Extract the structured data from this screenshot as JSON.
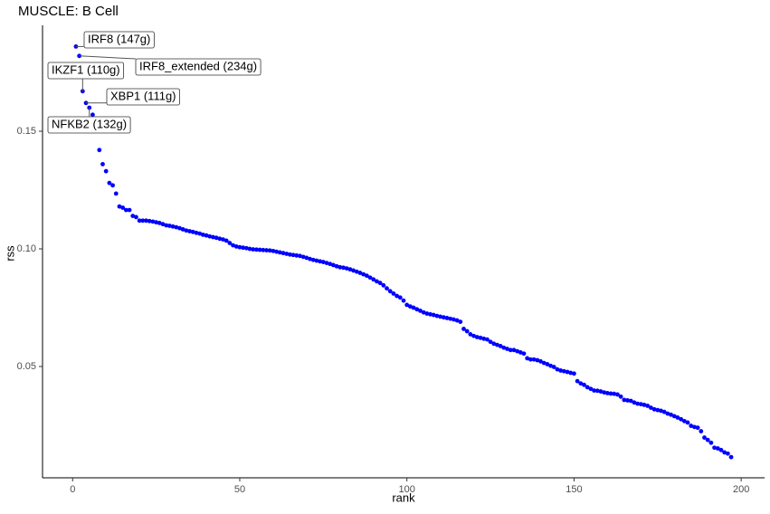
{
  "chart_data": {
    "type": "scatter",
    "title": "MUSCLE: B Cell",
    "x_label": "rank",
    "y_label": "rss",
    "color": "#0000ff",
    "xlim": [
      -9,
      207
    ],
    "ylim": [
      0.0027,
      0.195
    ],
    "xticks": [
      0,
      50,
      100,
      150,
      200
    ],
    "yticks": [
      0.05,
      {
        "value": 0.1,
        "label": "0.10"
      },
      0.15
    ],
    "annotations": [
      "IRF8 (147g)",
      "IRF8_extended (234g)",
      "IKZF1 (110g)",
      "XBP1 (111g)",
      "NFKB2 (132g)"
    ],
    "x": [
      1,
      2,
      3,
      4,
      5,
      6,
      7,
      8,
      9,
      10,
      11,
      12,
      13,
      14,
      15,
      16,
      17,
      18,
      19,
      20,
      21,
      22,
      23,
      24,
      25,
      26,
      27,
      28,
      29,
      30,
      31,
      32,
      33,
      34,
      35,
      36,
      37,
      38,
      39,
      40,
      41,
      42,
      43,
      44,
      45,
      46,
      47,
      48,
      49,
      50,
      51,
      52,
      53,
      54,
      55,
      56,
      57,
      58,
      59,
      60,
      61,
      62,
      63,
      64,
      65,
      66,
      67,
      68,
      69,
      70,
      71,
      72,
      73,
      74,
      75,
      76,
      77,
      78,
      79,
      80,
      81,
      82,
      83,
      84,
      85,
      86,
      87,
      88,
      89,
      90,
      91,
      92,
      93,
      94,
      95,
      96,
      97,
      98,
      99,
      100,
      101,
      102,
      103,
      104,
      105,
      106,
      107,
      108,
      109,
      110,
      111,
      112,
      113,
      114,
      115,
      116,
      117,
      118,
      119,
      120,
      121,
      122,
      123,
      124,
      125,
      126,
      127,
      128,
      129,
      130,
      131,
      132,
      133,
      134,
      135,
      136,
      137,
      138,
      139,
      140,
      141,
      142,
      143,
      144,
      145,
      146,
      147,
      148,
      149,
      150,
      151,
      152,
      153,
      154,
      155,
      156,
      157,
      158,
      159,
      160,
      161,
      162,
      163,
      164,
      165,
      166,
      167,
      168,
      169,
      170,
      171,
      172,
      173,
      174,
      175,
      176,
      177,
      178,
      179,
      180,
      181,
      182,
      183,
      184,
      185,
      186,
      187,
      188,
      189,
      190,
      191,
      192,
      193,
      194,
      195,
      196,
      197
    ],
    "values": [
      0.186,
      0.182,
      0.167,
      0.162,
      0.16,
      0.157,
      0.151,
      0.142,
      0.136,
      0.133,
      0.128,
      0.127,
      0.1235,
      0.118,
      0.1175,
      0.1165,
      0.1165,
      0.114,
      0.1135,
      0.112,
      0.112,
      0.112,
      0.1118,
      0.1116,
      0.1113,
      0.111,
      0.1105,
      0.11,
      0.1098,
      0.1095,
      0.1092,
      0.1088,
      0.1083,
      0.1078,
      0.1075,
      0.1072,
      0.1068,
      0.1065,
      0.106,
      0.1057,
      0.1053,
      0.105,
      0.1047,
      0.1043,
      0.104,
      0.1035,
      0.1025,
      0.1015,
      0.101,
      0.1007,
      0.1005,
      0.1003,
      0.1,
      0.0998,
      0.0997,
      0.0996,
      0.0995,
      0.0994,
      0.0993,
      0.0991,
      0.0988,
      0.0985,
      0.0982,
      0.0979,
      0.0976,
      0.0974,
      0.0972,
      0.097,
      0.0966,
      0.0962,
      0.0957,
      0.0953,
      0.095,
      0.0947,
      0.0944,
      0.094,
      0.0936,
      0.0931,
      0.0926,
      0.0922,
      0.092,
      0.0917,
      0.0913,
      0.0908,
      0.0903,
      0.0898,
      0.0892,
      0.0886,
      0.0878,
      0.087,
      0.0862,
      0.0855,
      0.0845,
      0.0832,
      0.082,
      0.081,
      0.08,
      0.0793,
      0.078,
      0.0762,
      0.0755,
      0.075,
      0.0743,
      0.0737,
      0.073,
      0.0725,
      0.0722,
      0.0719,
      0.0715,
      0.0712,
      0.0709,
      0.0706,
      0.0703,
      0.07,
      0.0696,
      0.069,
      0.066,
      0.065,
      0.0637,
      0.063,
      0.0625,
      0.0622,
      0.0618,
      0.0615,
      0.0605,
      0.0597,
      0.0592,
      0.0587,
      0.058,
      0.0575,
      0.057,
      0.057,
      0.0565,
      0.056,
      0.0555,
      0.0535,
      0.053,
      0.053,
      0.0527,
      0.0522,
      0.0515,
      0.051,
      0.0503,
      0.0498,
      0.0488,
      0.0483,
      0.048,
      0.0477,
      0.0473,
      0.047,
      0.0438,
      0.0428,
      0.0422,
      0.0412,
      0.0405,
      0.0398,
      0.0397,
      0.0394,
      0.039,
      0.0387,
      0.0385,
      0.0384,
      0.0381,
      0.0372,
      0.0358,
      0.0356,
      0.0354,
      0.0347,
      0.0342,
      0.034,
      0.0337,
      0.0333,
      0.0325,
      0.0318,
      0.0315,
      0.0312,
      0.0307,
      0.03,
      0.0295,
      0.0289,
      0.0283,
      0.0276,
      0.0268,
      0.0262,
      0.0248,
      0.0243,
      0.024,
      0.0225,
      0.0198,
      0.0188,
      0.0176,
      0.0155,
      0.0152,
      0.0145,
      0.0135,
      0.013,
      0.0115
    ]
  }
}
